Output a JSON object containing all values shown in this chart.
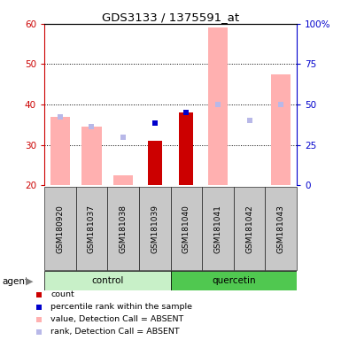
{
  "title": "GDS3133 / 1375591_at",
  "samples": [
    "GSM180920",
    "GSM181037",
    "GSM181038",
    "GSM181039",
    "GSM181040",
    "GSM181041",
    "GSM181042",
    "GSM181043"
  ],
  "groups": [
    "control",
    "control",
    "control",
    "control",
    "quercetin",
    "quercetin",
    "quercetin",
    "quercetin"
  ],
  "value_absent": [
    37.0,
    34.5,
    22.5,
    null,
    null,
    59.0,
    null,
    47.5
  ],
  "rank_absent": [
    37.0,
    34.5,
    32.0,
    null,
    null,
    40.0,
    36.0,
    40.0
  ],
  "count": [
    null,
    null,
    null,
    31.0,
    38.0,
    null,
    null,
    null
  ],
  "percentile_rank": [
    null,
    null,
    null,
    35.5,
    38.0,
    null,
    null,
    null
  ],
  "ylim_left": [
    20,
    60
  ],
  "ylim_right": [
    0,
    100
  ],
  "yticks_left": [
    20,
    30,
    40,
    50,
    60
  ],
  "yticks_right": [
    0,
    25,
    50,
    75,
    100
  ],
  "ytick_labels_right": [
    "0",
    "25",
    "50",
    "75",
    "100%"
  ],
  "bar_width": 0.45,
  "control_color": "#c8f0c8",
  "quercetin_color": "#50c850",
  "sample_bg_color": "#c8c8c8",
  "value_absent_color": "#ffb0b0",
  "rank_absent_color": "#b8b8e8",
  "count_color": "#cc0000",
  "percentile_rank_color": "#0000cc",
  "left_tick_color": "#cc0000",
  "right_tick_color": "#0000cc"
}
